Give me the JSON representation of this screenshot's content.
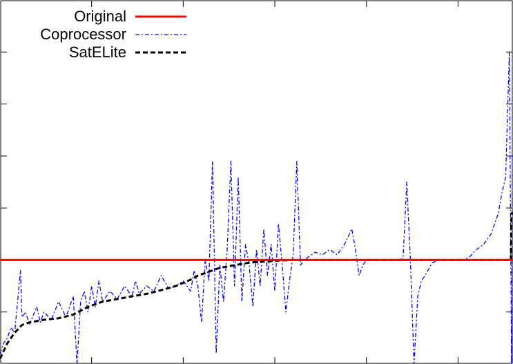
{
  "chart_data": {
    "type": "line",
    "title": "",
    "xlabel": "",
    "ylabel": "",
    "x_range": [
      0,
      700
    ],
    "ylim": [
      0,
      7
    ],
    "x_ticks": [
      125,
      250,
      375,
      500,
      625
    ],
    "y_ticks": [
      1,
      2,
      3,
      4,
      5,
      6
    ],
    "grid": false,
    "legend_position": "top-left",
    "colors": {
      "Original": "#ff0000",
      "Coprocessor": "#0000ff",
      "SatELite": "#000000"
    },
    "series": [
      {
        "name": "Original",
        "style": "solid",
        "x": [
          0,
          700
        ],
        "y": [
          2.0,
          2.0
        ]
      },
      {
        "name": "SatELite",
        "style": "dashed",
        "x": [
          0,
          10,
          20,
          30,
          40,
          60,
          80,
          100,
          120,
          140,
          160,
          180,
          200,
          220,
          240,
          260,
          270,
          280,
          290,
          300,
          320,
          340,
          360,
          380,
          400,
          450,
          500,
          550,
          600,
          650,
          697,
          698,
          700
        ],
        "y": [
          0.1,
          0.4,
          0.6,
          0.75,
          0.8,
          0.85,
          0.88,
          0.95,
          1.1,
          1.2,
          1.25,
          1.3,
          1.35,
          1.42,
          1.5,
          1.62,
          1.7,
          1.75,
          1.8,
          1.85,
          1.9,
          1.95,
          1.97,
          1.99,
          2.0,
          2.0,
          2.0,
          2.0,
          2.0,
          2.0,
          2.0,
          2.9,
          2.9
        ]
      },
      {
        "name": "Coprocessor",
        "style": "dash-dot",
        "x": [
          0,
          5,
          10,
          15,
          20,
          28,
          30,
          35,
          40,
          50,
          55,
          60,
          70,
          80,
          90,
          100,
          105,
          110,
          115,
          120,
          125,
          130,
          135,
          140,
          150,
          160,
          170,
          180,
          185,
          190,
          200,
          210,
          220,
          230,
          240,
          250,
          260,
          265,
          270,
          275,
          280,
          285,
          290,
          295,
          300,
          305,
          310,
          315,
          320,
          325,
          330,
          335,
          340,
          345,
          350,
          355,
          360,
          365,
          370,
          375,
          380,
          385,
          390,
          395,
          400,
          405,
          410,
          415,
          420,
          425,
          430,
          440,
          450,
          460,
          470,
          480,
          485,
          490,
          495,
          500,
          510,
          520,
          530,
          540,
          550,
          555,
          560,
          565,
          570,
          575,
          580,
          590,
          600,
          610,
          620,
          630,
          640,
          650,
          660,
          670,
          680,
          685,
          690,
          695,
          698,
          699,
          700
        ],
        "y": [
          0.2,
          0.4,
          0.5,
          0.7,
          0.6,
          1.8,
          0.9,
          1.0,
          0.75,
          1.1,
          0.8,
          1.0,
          0.85,
          1.2,
          0.9,
          1.3,
          0.0,
          1.2,
          1.4,
          1.0,
          1.5,
          1.1,
          1.6,
          1.2,
          1.4,
          1.25,
          1.5,
          1.3,
          1.6,
          1.35,
          1.5,
          1.4,
          1.7,
          1.45,
          1.5,
          1.6,
          1.4,
          1.8,
          1.5,
          0.8,
          2.0,
          1.6,
          3.9,
          0.2,
          1.9,
          1.2,
          2.2,
          3.9,
          1.5,
          3.6,
          1.2,
          2.3,
          1.9,
          1.1,
          2.2,
          1.5,
          2.6,
          1.7,
          2.3,
          1.4,
          2.7,
          1.9,
          1.0,
          1.6,
          2.1,
          3.9,
          1.9,
          2.0,
          2.05,
          2.1,
          2.15,
          2.1,
          2.2,
          2.1,
          2.3,
          2.6,
          2.2,
          1.7,
          1.9,
          2.0,
          2.0,
          2.0,
          2.0,
          2.0,
          2.02,
          3.5,
          2.0,
          0.0,
          1.3,
          1.6,
          1.7,
          1.95,
          2.0,
          2.0,
          2.0,
          2.0,
          2.05,
          2.2,
          2.3,
          2.5,
          2.9,
          3.3,
          3.6,
          6.0,
          0.0,
          4.0,
          4.0
        ]
      }
    ]
  }
}
